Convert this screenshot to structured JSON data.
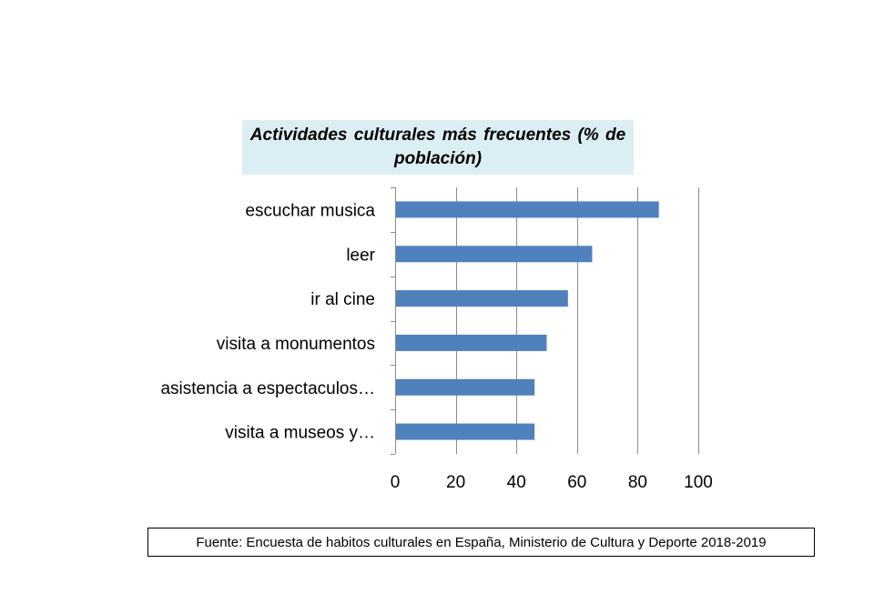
{
  "chart_data": {
    "type": "bar",
    "orientation": "horizontal",
    "title": "Actividades  culturales  más frecuentes (% de población)",
    "categories": [
      "escuchar musica",
      "leer",
      "ir al cine",
      "visita a monumentos",
      "asistencia a espectaculos…",
      "visita a museos y…"
    ],
    "values": [
      87,
      65,
      57,
      50,
      46,
      46
    ],
    "xlim": [
      0,
      100
    ],
    "xticks": [
      "0",
      "20",
      "40",
      "60",
      "80",
      "100"
    ],
    "xlabel": "",
    "ylabel": "",
    "grid": true,
    "legend": "none",
    "bar_color": "#4f81bd",
    "title_background": "#dbeef4"
  },
  "source": "Fuente: Encuesta de habitos culturales en España, Ministerio de Cultura y Deporte 2018-2019"
}
